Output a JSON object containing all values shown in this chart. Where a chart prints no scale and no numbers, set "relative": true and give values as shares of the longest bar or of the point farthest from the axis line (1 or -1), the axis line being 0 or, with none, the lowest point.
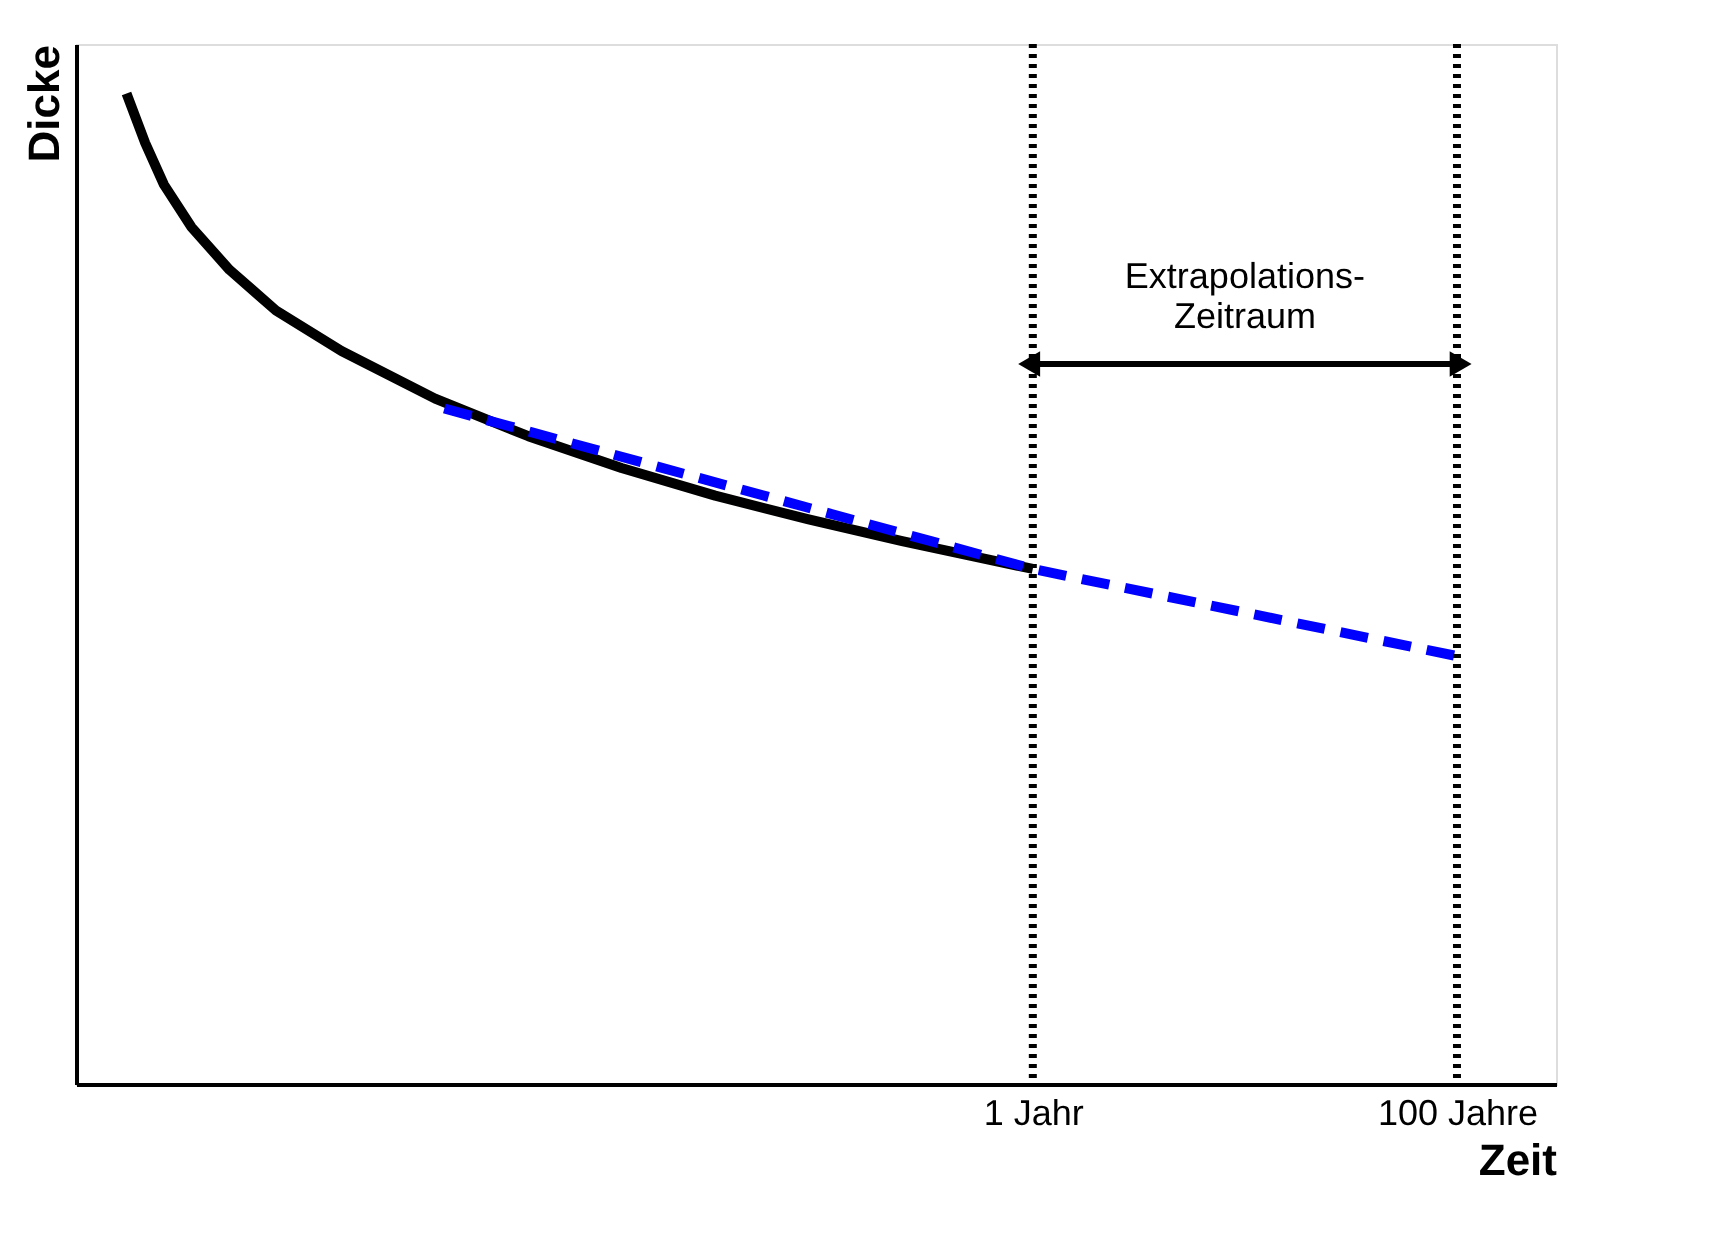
{
  "chart_data": {
    "type": "line",
    "relative": true,
    "xlabel": "Zeit",
    "ylabel": "Dicke",
    "log": "x",
    "grid": false,
    "marker": "none",
    "xlim": [
      3.08e-05,
      293
    ],
    "xticks": [
      {
        "value": 1,
        "label": "1 Jahr"
      },
      {
        "value": 100,
        "label": "100 Jahre"
      }
    ],
    "series": [
      {
        "color": "#000000",
        "line_style": "solid",
        "x": [
          5.33e-05,
          6.53e-05,
          8e-05,
          0.000108,
          0.000163,
          0.00027,
          0.00055,
          0.00152,
          0.00418,
          0.0115,
          0.0318,
          0.0877,
          0.242,
          1
        ],
        "values": [
          1,
          0.95,
          0.908,
          0.865,
          0.822,
          0.781,
          0.74,
          0.692,
          0.654,
          0.622,
          0.594,
          0.57,
          0.548,
          0.52
        ]
      },
      {
        "color": "#0000ff",
        "line_style": "dashed",
        "x": [
          0.00168,
          1,
          100
        ],
        "values": [
          0.682,
          0.52,
          0.432
        ]
      }
    ],
    "ref_lines": [
      {
        "axis": "x",
        "value": 1,
        "color": "#000000",
        "line_style": "dotted"
      },
      {
        "axis": "x",
        "value": 100,
        "color": "#000000",
        "line_style": "dotted"
      }
    ],
    "annotations": [
      "Extrapolations-\nZeitraum"
    ]
  }
}
